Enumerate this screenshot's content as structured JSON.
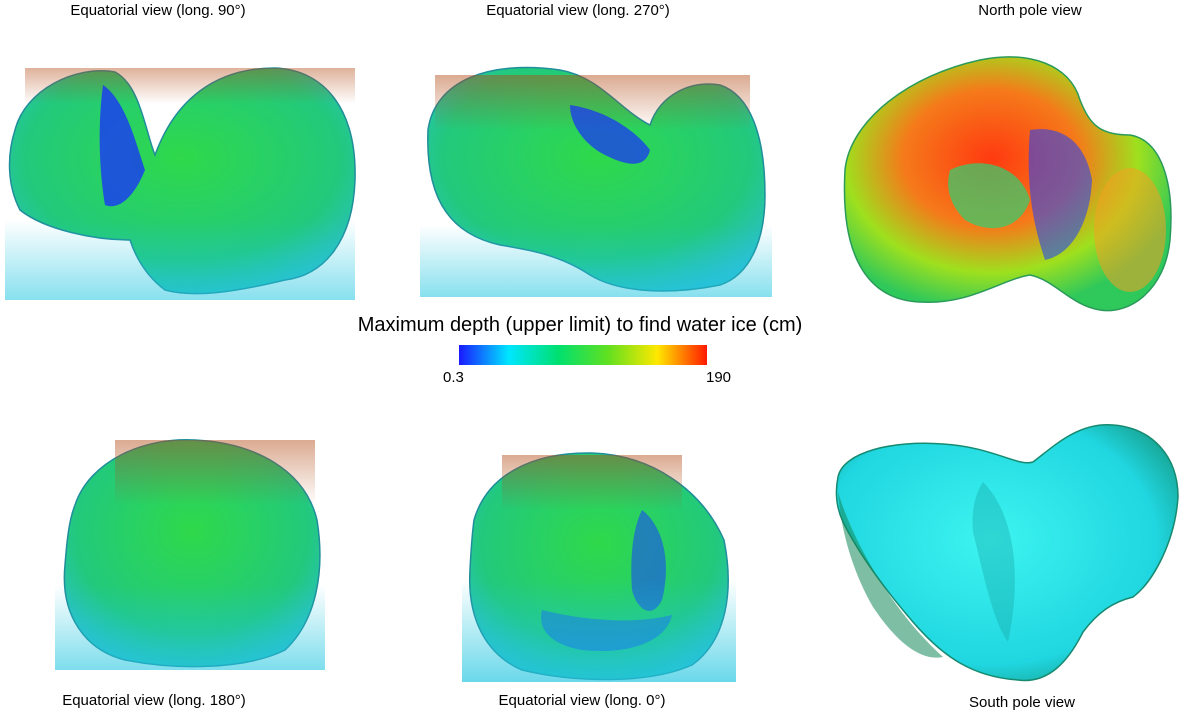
{
  "views": [
    {
      "key": "eq90",
      "label": "Equatorial view (long. 90°)"
    },
    {
      "key": "eq270",
      "label": "Equatorial view (long. 270°)"
    },
    {
      "key": "np",
      "label": "North pole view"
    },
    {
      "key": "eq180",
      "label": "Equatorial view (long. 180°)"
    },
    {
      "key": "eq0",
      "label": "Equatorial view (long. 0°)"
    },
    {
      "key": "sp",
      "label": "South pole view"
    }
  ],
  "colorbar": {
    "title": "Maximum depth (upper limit) to find water ice (cm)",
    "min": "0.3",
    "max": "190",
    "colors": [
      "#1a1aff",
      "#00e6ff",
      "#00e070",
      "#60e020",
      "#ffe800",
      "#ff1a00"
    ]
  }
}
